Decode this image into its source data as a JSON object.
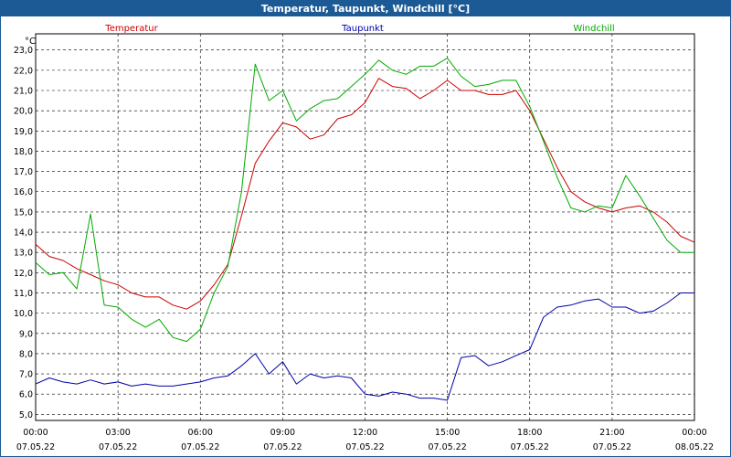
{
  "window": {
    "title": "Temperatur, Taupunkt, Windchill [°C]"
  },
  "colors": {
    "title_bar": "#1c5a95",
    "temperatur": "#cc0000",
    "taupunkt": "#0000aa",
    "windchill": "#00aa00",
    "grid": "#000000"
  },
  "chart_data": {
    "type": "line",
    "title": "Temperatur, Taupunkt, Windchill [°C]",
    "ylabel": "°C",
    "xlabel": "",
    "ylim": [
      4.7,
      23.8
    ],
    "xlim": [
      "2022-05-07 00:00",
      "2022-05-08 00:00"
    ],
    "grid": true,
    "legend_placement": "top",
    "y_ticks": [
      "5,0",
      "6,0",
      "7,0",
      "8,0",
      "9,0",
      "10,0",
      "11,0",
      "12,0",
      "13,0",
      "14,0",
      "15,0",
      "16,0",
      "17,0",
      "18,0",
      "19,0",
      "20,0",
      "21,0",
      "22,0",
      "23,0"
    ],
    "x_ticks": [
      {
        "time": "00:00",
        "date": "07.05.22"
      },
      {
        "time": "03:00",
        "date": "07.05.22"
      },
      {
        "time": "06:00",
        "date": "07.05.22"
      },
      {
        "time": "09:00",
        "date": "07.05.22"
      },
      {
        "time": "12:00",
        "date": "07.05.22"
      },
      {
        "time": "15:00",
        "date": "07.05.22"
      },
      {
        "time": "18:00",
        "date": "07.05.22"
      },
      {
        "time": "21:00",
        "date": "07.05.22"
      },
      {
        "time": "00:00",
        "date": "08.05.22"
      }
    ],
    "series": [
      {
        "name": "Temperatur",
        "x": [
          "00:00",
          "00:30",
          "01:00",
          "01:30",
          "02:00",
          "02:30",
          "03:00",
          "03:30",
          "04:00",
          "04:30",
          "05:00",
          "05:30",
          "06:00",
          "06:30",
          "07:00",
          "07:30",
          "08:00",
          "08:30",
          "09:00",
          "09:30",
          "10:00",
          "10:30",
          "11:00",
          "11:30",
          "12:00",
          "12:30",
          "13:00",
          "13:30",
          "14:00",
          "14:30",
          "15:00",
          "15:30",
          "16:00",
          "16:30",
          "17:00",
          "17:30",
          "18:00",
          "18:30",
          "19:00",
          "19:30",
          "20:00",
          "20:30",
          "21:00",
          "21:30",
          "22:00",
          "22:30",
          "23:00",
          "23:30",
          "24:00"
        ],
        "values": [
          13.4,
          12.8,
          12.6,
          12.2,
          11.9,
          11.6,
          11.4,
          11.0,
          10.8,
          10.8,
          10.4,
          10.2,
          10.6,
          11.4,
          12.4,
          14.8,
          17.4,
          18.5,
          19.4,
          19.2,
          18.6,
          18.8,
          19.6,
          19.8,
          20.4,
          21.6,
          21.2,
          21.1,
          20.6,
          21.0,
          21.5,
          21.0,
          21.0,
          20.8,
          20.8,
          21.0,
          20.0,
          18.6,
          17.2,
          16.0,
          15.5,
          15.2,
          15.0,
          15.2,
          15.3,
          15.0,
          14.5,
          13.8,
          13.5
        ]
      },
      {
        "name": "Taupunkt",
        "x": [
          "00:00",
          "00:30",
          "01:00",
          "01:30",
          "02:00",
          "02:30",
          "03:00",
          "03:30",
          "04:00",
          "04:30",
          "05:00",
          "05:30",
          "06:00",
          "06:30",
          "07:00",
          "07:30",
          "08:00",
          "08:30",
          "09:00",
          "09:30",
          "10:00",
          "10:30",
          "11:00",
          "11:30",
          "12:00",
          "12:30",
          "13:00",
          "13:30",
          "14:00",
          "14:30",
          "15:00",
          "15:30",
          "16:00",
          "16:30",
          "17:00",
          "17:30",
          "18:00",
          "18:30",
          "19:00",
          "19:30",
          "20:00",
          "20:30",
          "21:00",
          "21:30",
          "22:00",
          "22:30",
          "23:00",
          "23:30",
          "24:00"
        ],
        "values": [
          6.5,
          6.8,
          6.6,
          6.5,
          6.7,
          6.5,
          6.6,
          6.4,
          6.5,
          6.4,
          6.4,
          6.5,
          6.6,
          6.8,
          6.9,
          7.4,
          8.0,
          7.0,
          7.6,
          6.5,
          7.0,
          6.8,
          6.9,
          6.8,
          6.0,
          5.9,
          6.1,
          6.0,
          5.8,
          5.8,
          5.7,
          7.8,
          7.9,
          7.4,
          7.6,
          7.9,
          8.2,
          9.8,
          10.3,
          10.4,
          10.6,
          10.7,
          10.3,
          10.3,
          10.0,
          10.1,
          10.5,
          11.0,
          11.0
        ]
      },
      {
        "name": "Windchill",
        "x": [
          "00:00",
          "00:30",
          "01:00",
          "01:30",
          "02:00",
          "02:30",
          "03:00",
          "03:30",
          "04:00",
          "04:30",
          "05:00",
          "05:30",
          "06:00",
          "06:30",
          "07:00",
          "07:30",
          "08:00",
          "08:30",
          "09:00",
          "09:30",
          "10:00",
          "10:30",
          "11:00",
          "11:30",
          "12:00",
          "12:30",
          "13:00",
          "13:30",
          "14:00",
          "14:30",
          "15:00",
          "15:30",
          "16:00",
          "16:30",
          "17:00",
          "17:30",
          "18:00",
          "18:30",
          "19:00",
          "19:30",
          "20:00",
          "20:30",
          "21:00",
          "21:30",
          "22:00",
          "22:30",
          "23:00",
          "23:30",
          "24:00"
        ],
        "values": [
          12.5,
          11.9,
          12.0,
          11.2,
          14.9,
          10.4,
          10.3,
          9.7,
          9.3,
          9.7,
          8.8,
          8.6,
          9.2,
          11.0,
          12.3,
          16.0,
          22.3,
          20.5,
          21.0,
          19.5,
          20.1,
          20.5,
          20.6,
          21.2,
          21.8,
          22.5,
          22.0,
          21.8,
          22.2,
          22.2,
          22.6,
          21.7,
          21.2,
          21.3,
          21.5,
          21.5,
          20.2,
          18.5,
          16.7,
          15.2,
          15.0,
          15.3,
          15.2,
          16.8,
          15.8,
          14.7,
          13.6,
          13.0,
          13.0
        ]
      }
    ]
  }
}
